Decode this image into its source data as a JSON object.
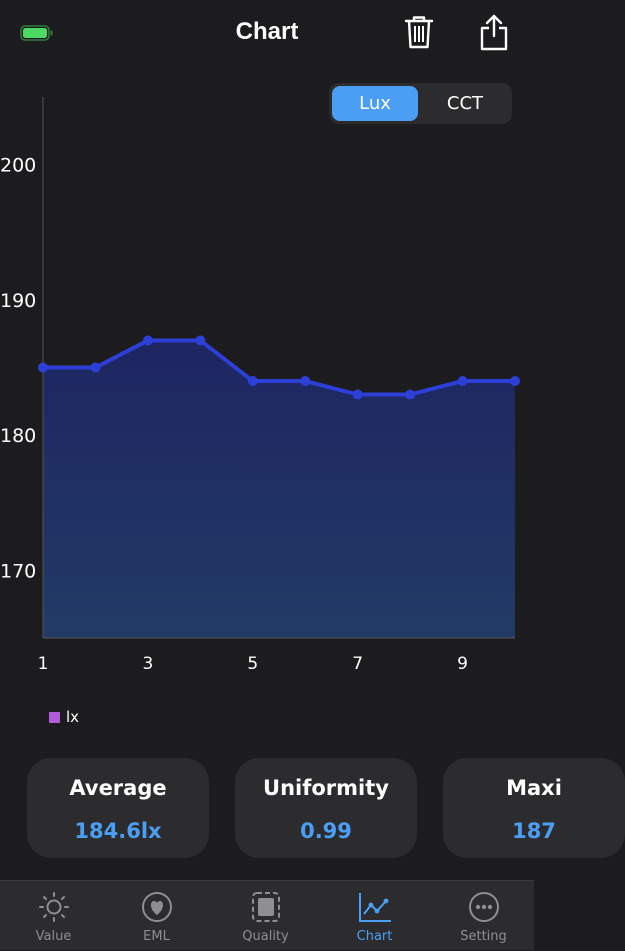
{
  "header": {
    "title": "Chart",
    "battery_icon": "battery-full-icon",
    "delete_icon": "trash-icon",
    "share_icon": "share-icon"
  },
  "segment": {
    "options": [
      "Lux",
      "CCT"
    ],
    "selected": "Lux"
  },
  "chart_data": {
    "type": "area",
    "x": [
      1,
      2,
      3,
      4,
      5,
      6,
      7,
      8,
      9,
      10
    ],
    "x_tick_labels": [
      "1",
      "3",
      "5",
      "7",
      "9"
    ],
    "y_tick_labels": [
      "200",
      "190",
      "180",
      "170"
    ],
    "ylim": [
      165,
      205
    ],
    "series": [
      {
        "name": "lx",
        "values": [
          185,
          185,
          187,
          187,
          184,
          184,
          183,
          183,
          184,
          184
        ],
        "line_color": "#2c3fd6",
        "fill_color_top": "#1e2561",
        "fill_color_bottom": "#223b66"
      }
    ],
    "legend_color": "#b25bd6",
    "legend_position": "bottom-left",
    "grid": false
  },
  "stats": [
    {
      "title": "Average",
      "value": "184.6lx"
    },
    {
      "title": "Uniformity",
      "value": "0.99"
    },
    {
      "title": "Maxi",
      "value": "187"
    }
  ],
  "tabbar": {
    "items": [
      {
        "label": "Value",
        "icon": "sun-icon"
      },
      {
        "label": "EML",
        "icon": "heart-icon"
      },
      {
        "label": "Quality",
        "icon": "square-icon"
      },
      {
        "label": "Chart",
        "icon": "chart-icon"
      },
      {
        "label": "Setting",
        "icon": "ellipsis-icon"
      }
    ],
    "active": "Chart"
  },
  "colors": {
    "accent": "#4a9ff5",
    "background": "#1c1c1e",
    "card": "#2c2c2e",
    "battery": "#4cd964"
  }
}
